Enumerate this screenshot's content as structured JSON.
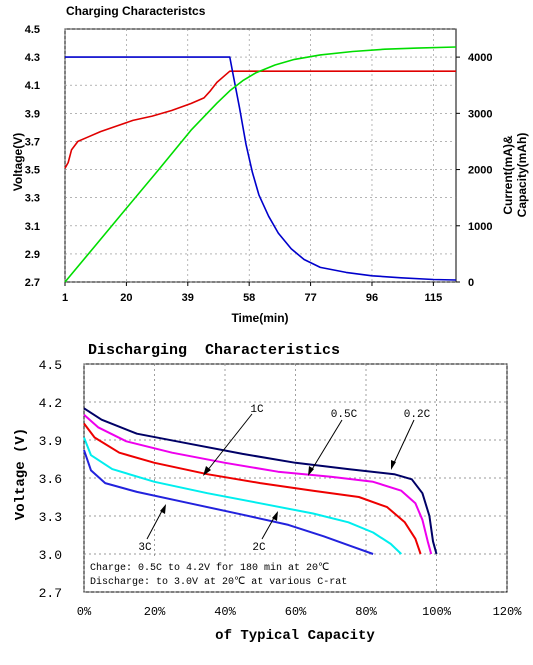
{
  "chart_data": [
    {
      "type": "line",
      "title": "Charging Characteristcs",
      "xlabel": "Time(min)",
      "ylabel": "Voltage(V)",
      "y2label_line1": "Current(mA)&",
      "y2label_line2": "Capacity(mAh)",
      "xlim": [
        1,
        122
      ],
      "ylim": [
        2.7,
        4.5
      ],
      "y2lim": [
        0,
        4500
      ],
      "x_ticks": [
        "1",
        "20",
        "39",
        "58",
        "77",
        "96",
        "115"
      ],
      "x_tick_values": [
        1,
        20,
        39,
        58,
        77,
        96,
        115
      ],
      "y_ticks": [
        "2.7",
        "2.9",
        "3.1",
        "3.3",
        "3.5",
        "3.7",
        "3.9",
        "4.1",
        "4.3",
        "4.5"
      ],
      "y_tick_values": [
        2.7,
        2.9,
        3.1,
        3.3,
        3.5,
        3.7,
        3.9,
        4.1,
        4.3,
        4.5
      ],
      "y2_ticks": [
        "0",
        "1000",
        "2000",
        "3000",
        "4000"
      ],
      "y2_tick_values": [
        0,
        1000,
        2000,
        3000,
        4000
      ],
      "grid": true,
      "series": [
        {
          "axis": "left",
          "color": "#e00000",
          "points": [
            [
              1,
              3.51
            ],
            [
              2,
              3.55
            ],
            [
              3,
              3.64
            ],
            [
              5,
              3.7
            ],
            [
              8,
              3.73
            ],
            [
              12,
              3.77
            ],
            [
              17,
              3.81
            ],
            [
              22,
              3.85
            ],
            [
              28,
              3.88
            ],
            [
              34,
              3.92
            ],
            [
              40,
              3.97
            ],
            [
              44,
              4.01
            ],
            [
              46,
              4.06
            ],
            [
              48,
              4.12
            ],
            [
              50,
              4.16
            ],
            [
              52,
              4.2
            ],
            [
              60,
              4.2
            ],
            [
              80,
              4.2
            ],
            [
              100,
              4.2
            ],
            [
              122,
              4.2
            ]
          ]
        },
        {
          "axis": "right",
          "color": "#0000cc",
          "points": [
            [
              1,
              4000
            ],
            [
              10,
              4000
            ],
            [
              20,
              4000
            ],
            [
              30,
              4000
            ],
            [
              40,
              4000
            ],
            [
              52,
              4000
            ],
            [
              53,
              3700
            ],
            [
              55,
              3100
            ],
            [
              57,
              2450
            ],
            [
              59,
              1950
            ],
            [
              61,
              1550
            ],
            [
              64,
              1170
            ],
            [
              67,
              870
            ],
            [
              71,
              590
            ],
            [
              75,
              400
            ],
            [
              80,
              260
            ],
            [
              88,
              170
            ],
            [
              96,
              110
            ],
            [
              105,
              75
            ],
            [
              115,
              45
            ],
            [
              122,
              35
            ]
          ]
        },
        {
          "axis": "right",
          "color": "#00dd00",
          "points": [
            [
              1,
              0
            ],
            [
              10,
              620
            ],
            [
              20,
              1310
            ],
            [
              30,
              2000
            ],
            [
              40,
              2700
            ],
            [
              48,
              3180
            ],
            [
              52,
              3400
            ],
            [
              56,
              3580
            ],
            [
              60,
              3720
            ],
            [
              66,
              3860
            ],
            [
              72,
              3960
            ],
            [
              80,
              4040
            ],
            [
              90,
              4100
            ],
            [
              100,
              4140
            ],
            [
              110,
              4160
            ],
            [
              122,
              4180
            ]
          ]
        }
      ]
    },
    {
      "type": "line",
      "title": "Discharging  Characteristics",
      "xlabel": "of Typical Capacity",
      "ylabel": "Voltage (V)",
      "xlim": [
        0,
        120
      ],
      "ylim": [
        2.7,
        4.5
      ],
      "x_ticks": [
        "0%",
        "20%",
        "40%",
        "60%",
        "80%",
        "100%",
        "120%"
      ],
      "x_tick_values": [
        0,
        20,
        40,
        60,
        80,
        100,
        120
      ],
      "y_ticks": [
        "2.7",
        "3.0",
        "3.3",
        "3.6",
        "3.9",
        "4.2",
        "4.5"
      ],
      "y_tick_values": [
        2.7,
        3.0,
        3.3,
        3.6,
        3.9,
        4.2,
        4.5
      ],
      "grid": true,
      "annotations": {
        "line1": "Charge: 0.5C to 4.2V for 180 min at 20℃",
        "line2": "Discharge: to 3.0V at 20℃ at various C-rat"
      },
      "series": [
        {
          "name": "0.2C",
          "color": "#000066",
          "points": [
            [
              0,
              4.15
            ],
            [
              5,
              4.06
            ],
            [
              15,
              3.95
            ],
            [
              30,
              3.87
            ],
            [
              45,
              3.79
            ],
            [
              60,
              3.72
            ],
            [
              75,
              3.67
            ],
            [
              88,
              3.63
            ],
            [
              93,
              3.59
            ],
            [
              96,
              3.48
            ],
            [
              98,
              3.3
            ],
            [
              99,
              3.1
            ],
            [
              100,
              3.0
            ]
          ]
        },
        {
          "name": "0.5C",
          "color": "#ee00ee",
          "points": [
            [
              0,
              4.1
            ],
            [
              4,
              4.0
            ],
            [
              12,
              3.89
            ],
            [
              25,
              3.8
            ],
            [
              40,
              3.72
            ],
            [
              55,
              3.65
            ],
            [
              70,
              3.61
            ],
            [
              82,
              3.57
            ],
            [
              90,
              3.5
            ],
            [
              94,
              3.4
            ],
            [
              96,
              3.27
            ],
            [
              97.5,
              3.1
            ],
            [
              98.5,
              3.0
            ]
          ]
        },
        {
          "name": "1C",
          "color": "#ee0000",
          "points": [
            [
              0,
              4.03
            ],
            [
              3,
              3.92
            ],
            [
              10,
              3.8
            ],
            [
              20,
              3.72
            ],
            [
              35,
              3.63
            ],
            [
              50,
              3.56
            ],
            [
              65,
              3.5
            ],
            [
              78,
              3.45
            ],
            [
              86,
              3.37
            ],
            [
              91,
              3.25
            ],
            [
              94,
              3.12
            ],
            [
              95.5,
              3.0
            ]
          ]
        },
        {
          "name": "2C",
          "color": "#00eeee",
          "points": [
            [
              0,
              3.92
            ],
            [
              2,
              3.78
            ],
            [
              8,
              3.67
            ],
            [
              20,
              3.57
            ],
            [
              35,
              3.48
            ],
            [
              50,
              3.4
            ],
            [
              65,
              3.32
            ],
            [
              75,
              3.25
            ],
            [
              82,
              3.17
            ],
            [
              87,
              3.08
            ],
            [
              90,
              3.0
            ]
          ]
        },
        {
          "name": "3C",
          "color": "#2222dd",
          "points": [
            [
              0,
              3.82
            ],
            [
              2,
              3.66
            ],
            [
              6,
              3.56
            ],
            [
              15,
              3.49
            ],
            [
              30,
              3.4
            ],
            [
              45,
              3.31
            ],
            [
              58,
              3.23
            ],
            [
              68,
              3.14
            ],
            [
              76,
              3.06
            ],
            [
              82,
              3.0
            ]
          ]
        }
      ],
      "curve_labels": [
        "1C",
        "0.5C",
        "0.2C",
        "3C",
        "2C"
      ]
    }
  ]
}
